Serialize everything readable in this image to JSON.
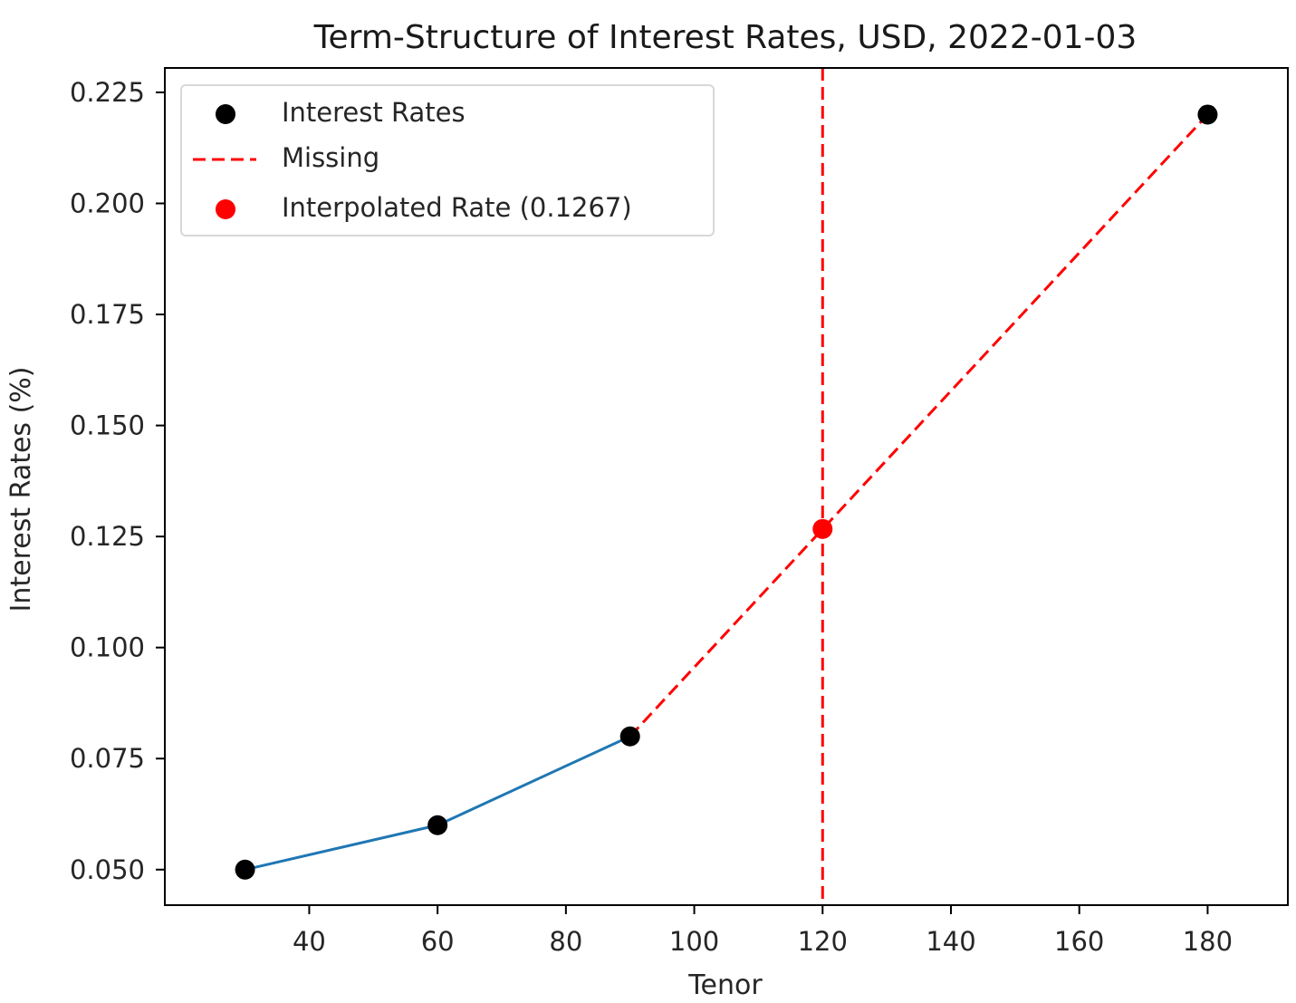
{
  "chart_data": {
    "type": "line",
    "title": "Term-Structure of Interest Rates, USD, 2022-01-03",
    "xlabel": "Tenor",
    "ylabel": "Interest Rates (%)",
    "xlim": [
      17.5,
      192.5
    ],
    "ylim": [
      0.042,
      0.2305
    ],
    "xticks": [
      40,
      60,
      80,
      100,
      120,
      140,
      160,
      180
    ],
    "yticks": [
      0.05,
      0.075,
      0.1,
      0.125,
      0.15,
      0.175,
      0.2,
      0.225
    ],
    "ytick_labels": [
      "0.050",
      "0.075",
      "0.100",
      "0.125",
      "0.150",
      "0.175",
      "0.200",
      "0.225"
    ],
    "grid": false,
    "legend_position": "top-left",
    "observed": {
      "x": [
        30,
        60,
        90,
        180
      ],
      "y": [
        0.05,
        0.06,
        0.08,
        0.22
      ],
      "line_color": "#1f77b4",
      "marker_color": "#000000"
    },
    "series": [
      {
        "name": "Interest Rates",
        "kind": "scatter",
        "color": "#000000",
        "x": [
          30,
          60,
          90,
          180
        ],
        "y": [
          0.05,
          0.06,
          0.08,
          0.22
        ]
      },
      {
        "name": "Missing",
        "kind": "dashed-line",
        "color": "#ff0000",
        "x": [
          90,
          180
        ],
        "y": [
          0.08,
          0.22
        ]
      },
      {
        "name": "Interpolated Rate (0.1267)",
        "kind": "scatter",
        "color": "#ff0000",
        "x": [
          120
        ],
        "y": [
          0.1267
        ]
      }
    ],
    "vertical_line": {
      "x": 120,
      "color": "#ff0000",
      "style": "dashed"
    }
  }
}
